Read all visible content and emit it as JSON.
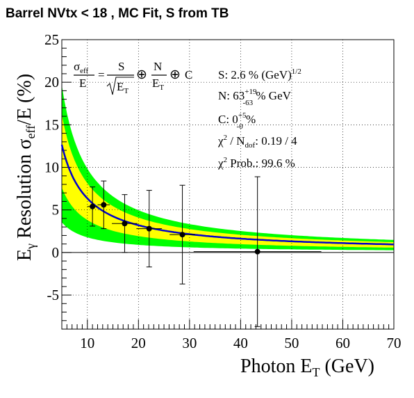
{
  "chart_data": {
    "type": "scatter",
    "title": "Barrel NVtx < 18 , MC Fit, S from TB",
    "xlabel": {
      "main": "Photon E",
      "sub": "T",
      "unit": " (GeV)"
    },
    "ylabel": {
      "main_a": "E",
      "sub_a": "γ",
      "main_b": " Resolution σ",
      "sub_b": "eff",
      "main_c": "/E (%)"
    },
    "xlim": [
      5,
      70
    ],
    "ylim": [
      -9,
      25
    ],
    "x_ticks": [
      10,
      20,
      30,
      40,
      50,
      60,
      70
    ],
    "y_ticks": [
      -5,
      0,
      5,
      10,
      15,
      20,
      25
    ],
    "grid": true,
    "series": [
      {
        "type": "points_with_errors",
        "points": [
          {
            "x": 11.0,
            "y": 5.4,
            "xerr": 1.0,
            "yerr": 2.3
          },
          {
            "x": 13.2,
            "y": 5.6,
            "xerr": 1.2,
            "yerr": 2.8
          },
          {
            "x": 17.3,
            "y": 3.4,
            "xerr": 2.5,
            "yerr": 3.4
          },
          {
            "x": 22.1,
            "y": 2.8,
            "xerr": 2.5,
            "yerr": 4.5
          },
          {
            "x": 28.6,
            "y": 2.1,
            "xerr": 2.5,
            "yerr": 5.8
          },
          {
            "x": 43.3,
            "y": 0.1,
            "xerr": 12.5,
            "yerr": 8.8
          }
        ]
      },
      {
        "type": "fit_curve",
        "color": "#0000cc",
        "S": 2.6,
        "N": 63,
        "C": 0
      }
    ],
    "bands": {
      "inner_color": "#ffff00",
      "outer_color": "#00ff00"
    },
    "formula": {
      "lhs_num": "σ",
      "lhs_num_sub": "eff",
      "lhs_den": "E",
      "s": "S",
      "sqrt_arg": "E",
      "sqrt_arg_sub": "T",
      "n": "N",
      "n_den": "E",
      "n_den_sub": "T",
      "c": "C",
      "oplus": "⊕",
      "eq": "="
    },
    "stats": {
      "s_label": "S:  2.6 % (GeV)",
      "s_sup": "1/2",
      "n_label": "N:  63",
      "n_sup": "+19",
      "n_sub": "-63",
      "n_unit": " % GeV",
      "c_label": "C:  0",
      "c_sup": "+5",
      "c_sub": "-0",
      "c_unit": " %",
      "chi_a": "χ",
      "chi_sup": "2",
      "chi_b": " / N",
      "chi_sub": "dof",
      "chi_c": ": 0.19 / 4",
      "prob_a": "χ",
      "prob_sup": "2",
      "prob_b": " Prob.: 99.6 %"
    }
  }
}
